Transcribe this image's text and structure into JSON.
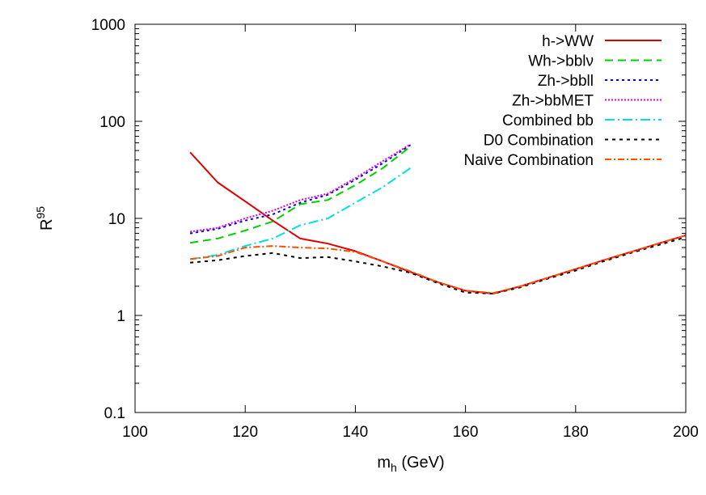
{
  "chart_data": {
    "type": "line",
    "title": "",
    "xlabel": {
      "main": "m",
      "sub": "h",
      "rest": " (GeV)"
    },
    "ylabel": {
      "main": "R",
      "sup": "95"
    },
    "xlim": [
      100,
      200
    ],
    "ylim": [
      0.1,
      1000
    ],
    "yscale": "log",
    "grid": false,
    "legend_position": "top-right",
    "x_ticks": [
      100,
      120,
      140,
      160,
      180,
      200
    ],
    "y_ticks": [
      0.1,
      1,
      10,
      100,
      1000
    ],
    "x_tick_labels": [
      "100",
      "120",
      "140",
      "160",
      "180",
      "200"
    ],
    "y_tick_labels": [
      "0.1",
      "1",
      "10",
      "100",
      "1000"
    ],
    "series": [
      {
        "name": "h->WW",
        "color": "#e00000",
        "dash": "solid",
        "x": [
          110,
          115,
          120,
          125,
          130,
          135,
          140,
          145,
          150,
          155,
          160,
          165,
          170,
          175,
          180,
          185,
          190,
          195,
          200
        ],
        "y": [
          48,
          23.5,
          15,
          9.5,
          6.2,
          5.5,
          4.6,
          3.6,
          2.8,
          2.2,
          1.8,
          1.68,
          2.0,
          2.45,
          3.0,
          3.7,
          4.5,
          5.5,
          6.7
        ]
      },
      {
        "name": "Wh->bblν",
        "color": "#00d000",
        "dash": "10,6",
        "x": [
          110,
          115,
          120,
          125,
          130,
          135,
          140,
          145,
          150
        ],
        "y": [
          5.6,
          6.2,
          7.5,
          9.3,
          14,
          15.5,
          22,
          33,
          55
        ]
      },
      {
        "name": "Zh->bbll",
        "color": "#0000e0",
        "dash": "3,4",
        "x": [
          110,
          115,
          120,
          125,
          130,
          135,
          140,
          145,
          150
        ],
        "y": [
          7,
          7.8,
          9.5,
          11,
          14.5,
          17.5,
          25,
          37,
          57
        ]
      },
      {
        "name": "Zh->bbMET",
        "color": "#e000e0",
        "dash": "2,2",
        "x": [
          110,
          115,
          120,
          125,
          130,
          135,
          140,
          145,
          150
        ],
        "y": [
          7.3,
          8,
          10,
          12,
          15.5,
          18,
          26,
          39,
          58
        ]
      },
      {
        "name": "Combined bb",
        "color": "#00e0e0",
        "dash": "12,4,2,4",
        "x": [
          110,
          115,
          120,
          125,
          130,
          135,
          140,
          145,
          150
        ],
        "y": [
          3.8,
          4.2,
          5.2,
          6.2,
          8.5,
          10,
          14.5,
          21,
          33
        ]
      },
      {
        "name": "D0 Combination",
        "color": "#000000",
        "dash": "4,5",
        "x": [
          110,
          115,
          120,
          125,
          130,
          135,
          140,
          145,
          150,
          155,
          160,
          165,
          170,
          175,
          180,
          185,
          190,
          195,
          200
        ],
        "y": [
          3.5,
          3.7,
          4.1,
          4.4,
          3.9,
          4.0,
          3.6,
          3.2,
          2.75,
          2.15,
          1.72,
          1.68,
          1.95,
          2.4,
          2.9,
          3.6,
          4.4,
          5.3,
          6.4
        ]
      },
      {
        "name": "Naive Combination",
        "color": "#ff5000",
        "dash": "8,3,2,3",
        "x": [
          110,
          115,
          120,
          125,
          130,
          135,
          140,
          145,
          150,
          155,
          160,
          165,
          170,
          175,
          180,
          185,
          190,
          195,
          200
        ],
        "y": [
          3.8,
          4.1,
          5.0,
          5.2,
          5.0,
          4.9,
          4.5,
          3.6,
          2.85,
          2.2,
          1.8,
          1.7,
          2.0,
          2.45,
          3.0,
          3.7,
          4.5,
          5.5,
          6.7
        ]
      }
    ]
  }
}
